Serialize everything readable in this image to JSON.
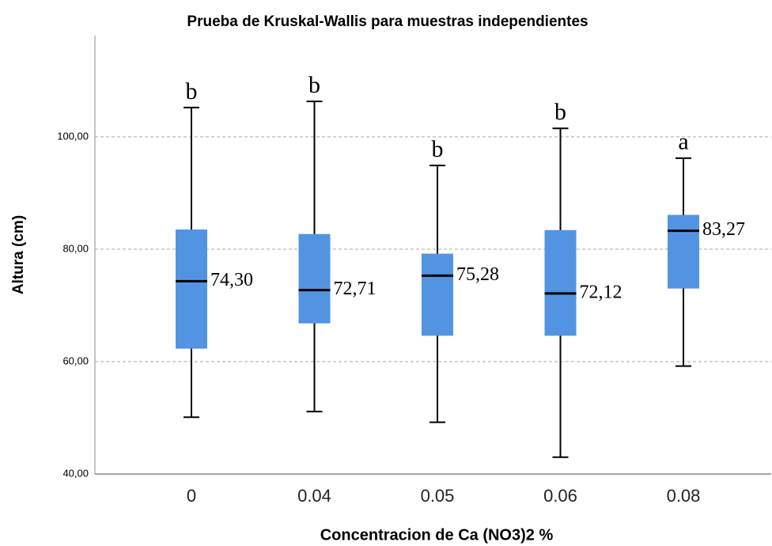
{
  "chart_data": {
    "type": "box",
    "title": "Prueba de Kruskal-Wallis para muestras independientes",
    "x_label": "Concentracion de Ca (NO3)2 %",
    "y_label": "Altura (cm)",
    "categories": [
      "0",
      "0.04",
      "0.05",
      "0.06",
      "0.08"
    ],
    "whisker_low": [
      50.1,
      51.1,
      49.2,
      43.0,
      59.2
    ],
    "q1": [
      62.3,
      66.8,
      64.6,
      64.6,
      73.0
    ],
    "median": [
      74.3,
      72.71,
      75.28,
      72.12,
      83.27
    ],
    "median_labels": [
      "74,30",
      "72,71",
      "75,28",
      "72,12",
      "83,27"
    ],
    "q3": [
      83.5,
      82.7,
      79.2,
      83.4,
      86.1
    ],
    "whisker_high": [
      105.2,
      106.3,
      94.9,
      101.5,
      96.2
    ],
    "letters": [
      "b",
      "b",
      "b",
      "b",
      "a"
    ],
    "color": "#5294e2",
    "ylim": [
      40,
      118
    ],
    "yticks": [
      {
        "value": 40,
        "label": "40,00"
      },
      {
        "value": 60,
        "label": "60,00"
      },
      {
        "value": 80,
        "label": "80,00"
      },
      {
        "value": 100,
        "label": "100,00"
      }
    ],
    "grid": true
  }
}
